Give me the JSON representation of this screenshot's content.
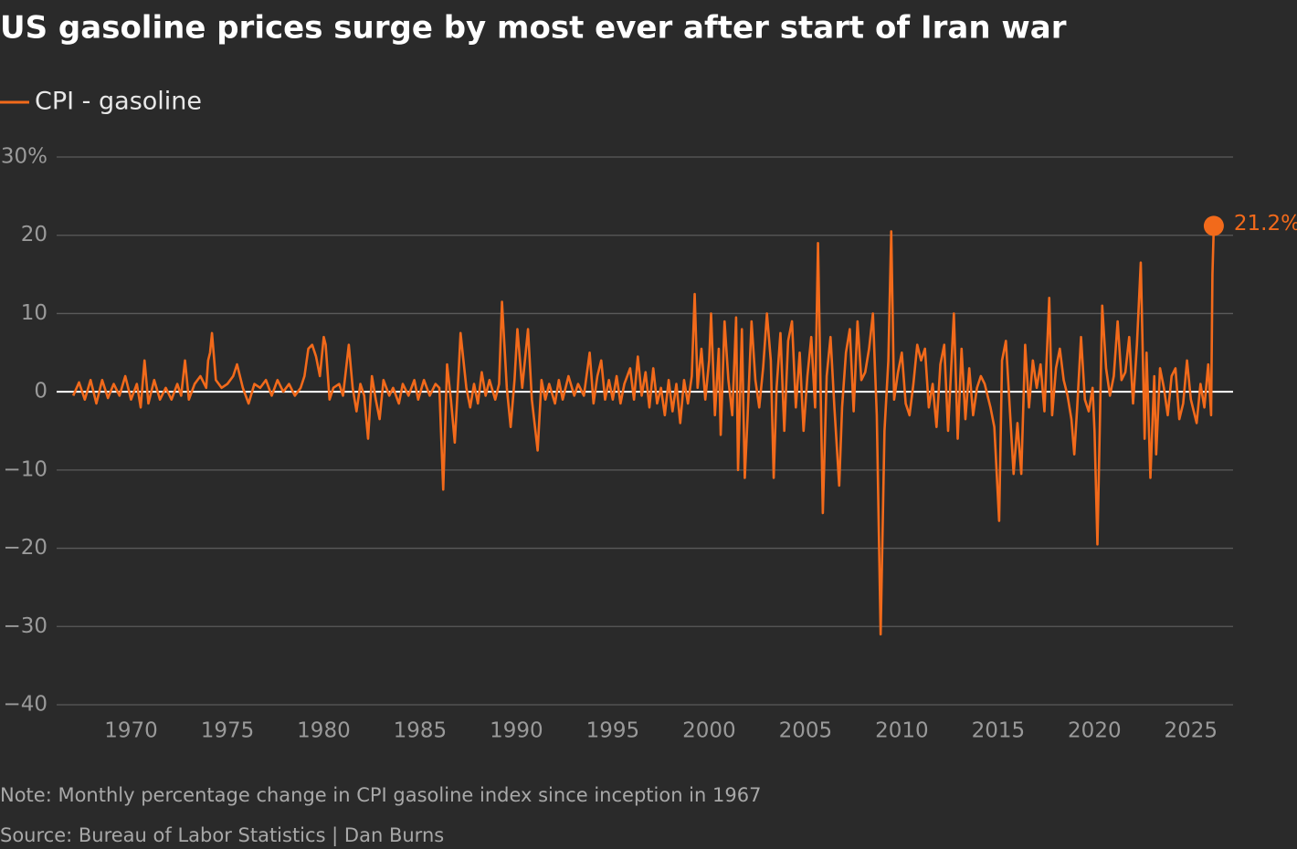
{
  "chart_data": {
    "type": "line",
    "title": "US gasoline prices surge by most ever after start of Iran war",
    "note": "Note: Monthly percentage change in CPI gasoline index since inception in 1967",
    "source": "Source: Bureau of Labor Statistics | Dan Burns",
    "x": [
      1967.0,
      1967.3,
      1967.6,
      1967.9,
      1968.2,
      1968.5,
      1968.8,
      1969.1,
      1969.4,
      1969.7,
      1970.0,
      1970.3,
      1970.5,
      1970.7,
      1970.9,
      1971.2,
      1971.5,
      1971.8,
      1972.1,
      1972.4,
      1972.6,
      1972.8,
      1973.0,
      1973.3,
      1973.6,
      1973.9,
      1974.0,
      1974.1,
      1974.2,
      1974.4,
      1974.7,
      1975.0,
      1975.3,
      1975.5,
      1975.8,
      1976.1,
      1976.4,
      1976.7,
      1977.0,
      1977.3,
      1977.6,
      1977.9,
      1978.2,
      1978.5,
      1978.8,
      1979.0,
      1979.2,
      1979.4,
      1979.6,
      1979.8,
      1980.0,
      1980.1,
      1980.3,
      1980.5,
      1980.8,
      1981.0,
      1981.3,
      1981.5,
      1981.7,
      1981.9,
      1982.1,
      1982.3,
      1982.5,
      1982.7,
      1982.9,
      1983.1,
      1983.4,
      1983.6,
      1983.9,
      1984.1,
      1984.4,
      1984.7,
      1984.9,
      1985.2,
      1985.5,
      1985.8,
      1986.0,
      1986.2,
      1986.4,
      1986.6,
      1986.8,
      1987.0,
      1987.1,
      1987.4,
      1987.6,
      1987.8,
      1988.0,
      1988.2,
      1988.4,
      1988.6,
      1988.9,
      1989.1,
      1989.25,
      1989.5,
      1989.7,
      1989.9,
      1990.05,
      1990.3,
      1990.6,
      1990.8,
      1991.1,
      1991.3,
      1991.5,
      1991.7,
      1992.0,
      1992.2,
      1992.4,
      1992.7,
      1993.0,
      1993.2,
      1993.5,
      1993.8,
      1994.0,
      1994.2,
      1994.4,
      1994.6,
      1994.8,
      1995.0,
      1995.2,
      1995.4,
      1995.6,
      1995.9,
      1996.1,
      1996.3,
      1996.5,
      1996.7,
      1996.9,
      1997.1,
      1997.3,
      1997.5,
      1997.7,
      1997.9,
      1998.1,
      1998.3,
      1998.5,
      1998.7,
      1998.9,
      1999.1,
      1999.25,
      1999.4,
      1999.6,
      1999.8,
      2000.0,
      2000.1,
      2000.3,
      2000.5,
      2000.6,
      2000.8,
      2001.0,
      2001.2,
      2001.4,
      2001.5,
      2001.7,
      2001.85,
      2002.0,
      2002.2,
      2002.4,
      2002.6,
      2002.8,
      2003.0,
      2003.2,
      2003.35,
      2003.5,
      2003.7,
      2003.9,
      2004.1,
      2004.3,
      2004.5,
      2004.7,
      2004.9,
      2005.1,
      2005.3,
      2005.5,
      2005.65,
      2005.9,
      2006.1,
      2006.3,
      2006.5,
      2006.75,
      2006.9,
      2007.1,
      2007.3,
      2007.5,
      2007.7,
      2007.9,
      2008.1,
      2008.3,
      2008.5,
      2008.7,
      2008.9,
      2009.1,
      2009.3,
      2009.45,
      2009.6,
      2009.8,
      2010.0,
      2010.2,
      2010.4,
      2010.6,
      2010.8,
      2011.0,
      2011.2,
      2011.4,
      2011.6,
      2011.8,
      2012.0,
      2012.2,
      2012.4,
      2012.7,
      2012.9,
      2013.1,
      2013.3,
      2013.5,
      2013.7,
      2013.9,
      2014.1,
      2014.3,
      2014.6,
      2014.8,
      2015.05,
      2015.2,
      2015.4,
      2015.6,
      2015.8,
      2016.0,
      2016.2,
      2016.4,
      2016.6,
      2016.8,
      2017.0,
      2017.2,
      2017.4,
      2017.65,
      2017.8,
      2018.0,
      2018.2,
      2018.4,
      2018.6,
      2018.8,
      2018.95,
      2019.1,
      2019.3,
      2019.5,
      2019.7,
      2019.9,
      2020.0,
      2020.15,
      2020.4,
      2020.6,
      2020.8,
      2021.0,
      2021.2,
      2021.4,
      2021.6,
      2021.8,
      2022.0,
      2022.2,
      2022.4,
      2022.6,
      2022.7,
      2022.9,
      2023.1,
      2023.2,
      2023.4,
      2023.6,
      2023.8,
      2024.0,
      2024.2,
      2024.4,
      2024.6,
      2024.8,
      2025.0,
      2025.3,
      2025.5,
      2025.7,
      2025.9,
      2026.05,
      2026.12,
      2026.19
    ],
    "series": [
      {
        "name": "CPI - gasoline",
        "color": "#f26a1b",
        "values": [
          -0.5,
          1.2,
          -1.0,
          1.5,
          -1.5,
          1.5,
          -0.8,
          1.0,
          -0.5,
          2.0,
          -1.0,
          1.0,
          -2.0,
          4.0,
          -1.5,
          1.5,
          -1.0,
          0.5,
          -1.0,
          1.0,
          -0.5,
          4.0,
          -1.0,
          1.0,
          2.0,
          0.5,
          4.0,
          5.0,
          7.5,
          1.5,
          0.5,
          1.0,
          2.0,
          3.5,
          0.5,
          -1.5,
          1.0,
          0.5,
          1.5,
          -0.5,
          1.5,
          0.0,
          1.0,
          -0.5,
          0.5,
          2.0,
          5.5,
          6.0,
          4.5,
          2.0,
          7.0,
          6.0,
          -1.0,
          0.5,
          1.0,
          -0.5,
          6.0,
          0.5,
          -2.5,
          1.0,
          -0.5,
          -6.0,
          2.0,
          -1.0,
          -3.5,
          1.5,
          -0.5,
          0.5,
          -1.5,
          1.0,
          -0.5,
          1.5,
          -1.0,
          1.5,
          -0.5,
          1.0,
          0.5,
          -12.5,
          3.5,
          -1.0,
          -6.5,
          2.5,
          7.5,
          0.5,
          -2.0,
          1.0,
          -1.5,
          2.5,
          -0.5,
          1.5,
          -1.0,
          1.0,
          11.5,
          0.5,
          -4.5,
          1.5,
          8.0,
          0.5,
          8.0,
          -1.0,
          -7.5,
          1.5,
          -1.0,
          1.0,
          -1.5,
          1.5,
          -1.0,
          2.0,
          -0.5,
          1.0,
          -0.5,
          5.0,
          -1.5,
          2.0,
          4.0,
          -1.0,
          1.5,
          -1.0,
          2.0,
          -1.5,
          1.0,
          3.0,
          -1.0,
          4.5,
          -0.5,
          2.5,
          -2.0,
          3.0,
          -1.5,
          0.5,
          -3.0,
          1.5,
          -2.5,
          1.0,
          -4.0,
          1.5,
          -1.5,
          2.0,
          12.5,
          0.5,
          5.5,
          -1.0,
          4.0,
          10.0,
          -3.0,
          5.5,
          -5.5,
          9.0,
          1.5,
          -3.0,
          9.5,
          -10.0,
          8.0,
          -11.0,
          -3.0,
          9.0,
          1.5,
          -2.0,
          3.0,
          10.0,
          4.0,
          -11.0,
          0.5,
          7.5,
          -5.0,
          6.5,
          9.0,
          -2.0,
          5.0,
          -5.0,
          2.0,
          7.0,
          -2.0,
          19.0,
          -15.5,
          2.0,
          7.0,
          -2.0,
          -12.0,
          -2.0,
          5.0,
          8.0,
          -2.5,
          9.0,
          1.5,
          2.5,
          5.5,
          10.0,
          -3.0,
          -31.0,
          -5.0,
          4.0,
          20.5,
          -1.0,
          2.5,
          5.0,
          -1.5,
          -3.0,
          1.0,
          6.0,
          4.0,
          5.5,
          -2.0,
          1.0,
          -4.5,
          3.5,
          6.0,
          -5.0,
          10.0,
          -6.0,
          5.5,
          -3.5,
          3.0,
          -3.0,
          0.5,
          2.0,
          1.0,
          -2.0,
          -4.5,
          -16.5,
          4.0,
          6.5,
          -2.0,
          -10.5,
          -4.0,
          -10.5,
          6.0,
          -2.0,
          4.0,
          0.5,
          3.5,
          -2.5,
          12.0,
          -3.0,
          3.0,
          5.5,
          1.5,
          -0.5,
          -3.5,
          -8.0,
          -2.0,
          7.0,
          -1.0,
          -2.5,
          0.5,
          -5.0,
          -19.5,
          11.0,
          3.0,
          -0.5,
          2.0,
          9.0,
          1.5,
          2.5,
          7.0,
          -1.5,
          6.0,
          16.5,
          -6.0,
          5.0,
          -11.0,
          2.0,
          -8.0,
          3.0,
          0.5,
          -3.0,
          2.0,
          3.0,
          -3.5,
          -1.5,
          4.0,
          -1.0,
          -4.0,
          1.0,
          -2.0,
          3.5,
          -3.0,
          15.0,
          21.2
        ]
      }
    ],
    "end_label": "21.2%",
    "xlim": [
      1965,
      2027
    ],
    "ylim": [
      -40,
      30
    ],
    "xticks": [
      1970,
      1975,
      1980,
      1985,
      1990,
      1995,
      2000,
      2005,
      2010,
      2015,
      2020,
      2025
    ],
    "yticks": [
      {
        "value": -40,
        "label": "−40"
      },
      {
        "value": -30,
        "label": "−30"
      },
      {
        "value": -20,
        "label": "−20"
      },
      {
        "value": -10,
        "label": "−10"
      },
      0,
      10,
      20,
      {
        "value": 30,
        "label": "30%"
      }
    ],
    "grid": true
  }
}
